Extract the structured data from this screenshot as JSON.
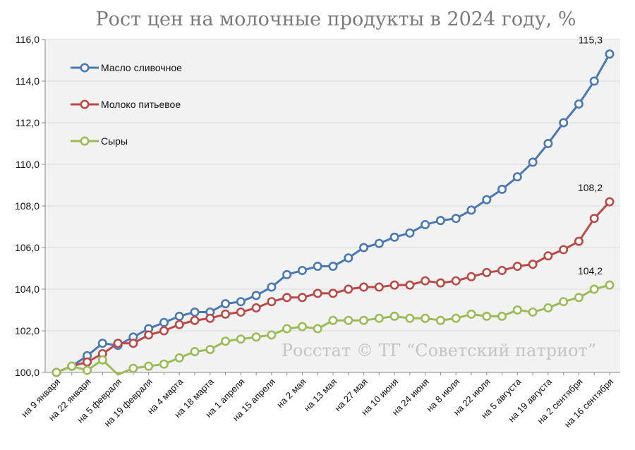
{
  "chart_data": {
    "type": "line",
    "title": "Рост цен на молочные продукты в 2024 году, %",
    "xlabel": "",
    "ylabel": "",
    "ylim": [
      100,
      116
    ],
    "yticks": [
      "100,0",
      "102,0",
      "104,0",
      "106,0",
      "108,0",
      "110,0",
      "112,0",
      "114,0",
      "116,0"
    ],
    "grid": true,
    "legend_position": "top-left",
    "categories": [
      "на 9 января",
      "на 15 января",
      "на 22 января",
      "на 29 января",
      "на 5 февраля",
      "на 12 февраля",
      "на 19 февраля",
      "на 26 февраля",
      "на 4 марта",
      "на 11 марта",
      "на 18 марта",
      "на 25 марта",
      "на 1 апреля",
      "на 8 апреля",
      "на 15 апреля",
      "на 22 апреля",
      "на 2 мая",
      "на 6 мая",
      "на 13 мая",
      "на 20 мая",
      "на 27 мая",
      "на 3 июня",
      "на 10 июня",
      "на 17 июня",
      "на 24 июня",
      "на 1 июля",
      "на 8 июля",
      "на 15 июля",
      "на 22 июля",
      "на 29 июля",
      "на 5 августа",
      "на 12 августа",
      "на 19 августа",
      "на 26 августа",
      "на 2 сентября",
      "на 9 сентября",
      "на 16 сентября"
    ],
    "visible_xticks": [
      "на 9 января",
      "на 22 января",
      "на 5 февраля",
      "на 19 февраля",
      "на 4 марта",
      "на 18 марта",
      "на 1 апреля",
      "на 15 апреля",
      "на 2 мая",
      "на 13 мая",
      "на 27 мая",
      "на 10 июня",
      "на 24 июня",
      "на 8 июля",
      "на 22 июля",
      "на 5 августа",
      "на 19 августа",
      "на 2 сентября",
      "на 16 сентября"
    ],
    "series": [
      {
        "name": "Масло сливочное",
        "color": "#4a78b2",
        "values": [
          100.0,
          100.3,
          100.8,
          101.4,
          101.3,
          101.7,
          102.1,
          102.4,
          102.7,
          102.9,
          102.9,
          103.3,
          103.4,
          103.7,
          104.1,
          104.7,
          104.9,
          105.1,
          105.1,
          105.5,
          106.0,
          106.2,
          106.5,
          106.7,
          107.1,
          107.3,
          107.4,
          107.8,
          108.3,
          108.8,
          109.4,
          110.1,
          111.0,
          112.0,
          112.9,
          114.0,
          115.3
        ],
        "end_label": "115,3"
      },
      {
        "name": "Молоко питьевое",
        "color": "#b94a48",
        "values": [
          100.0,
          100.3,
          100.5,
          100.9,
          101.4,
          101.4,
          101.8,
          102.0,
          102.3,
          102.5,
          102.6,
          102.8,
          102.9,
          103.1,
          103.4,
          103.6,
          103.6,
          103.8,
          103.8,
          104.0,
          104.1,
          104.1,
          104.2,
          104.2,
          104.4,
          104.3,
          104.4,
          104.6,
          104.8,
          104.9,
          105.1,
          105.2,
          105.6,
          105.9,
          106.3,
          107.4,
          108.2
        ],
        "end_label": "108,2"
      },
      {
        "name": "Сыры",
        "color": "#9bbb59",
        "values": [
          100.0,
          100.3,
          100.1,
          100.6,
          99.9,
          100.2,
          100.3,
          100.4,
          100.7,
          101.0,
          101.1,
          101.5,
          101.6,
          101.7,
          101.8,
          102.1,
          102.2,
          102.1,
          102.5,
          102.5,
          102.5,
          102.6,
          102.7,
          102.6,
          102.6,
          102.5,
          102.6,
          102.8,
          102.7,
          102.7,
          103.0,
          102.9,
          103.1,
          103.4,
          103.6,
          104.0,
          104.2
        ],
        "hidden_markers": [
          4
        ],
        "end_label": "104,2"
      }
    ],
    "watermark": "Росстат © ТГ “Советский патриот”"
  }
}
